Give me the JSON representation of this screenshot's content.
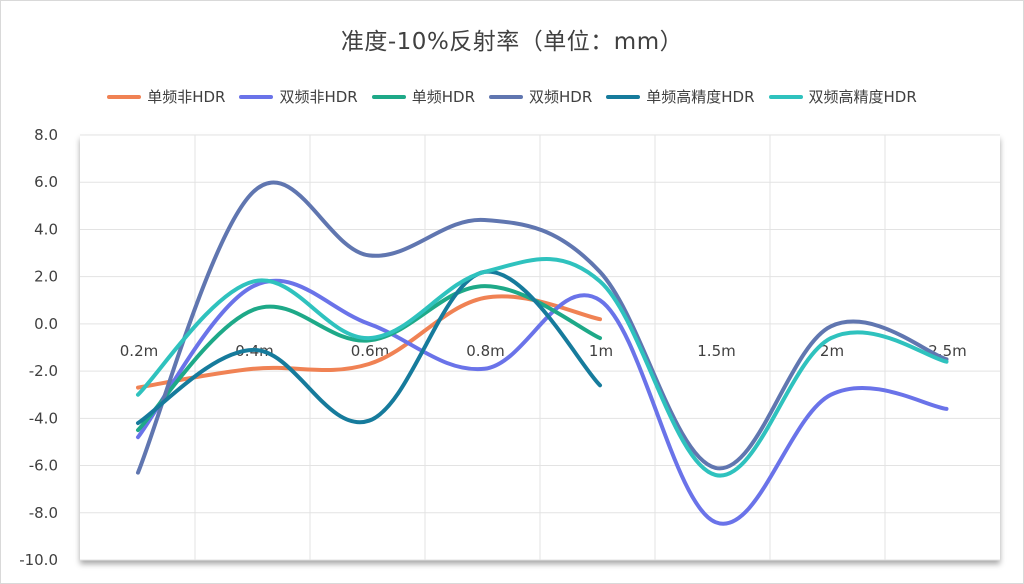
{
  "chart_data": {
    "type": "line",
    "title": "准度-10%反射率（单位：mm）",
    "categories": [
      "0.2m",
      "0.4m",
      "0.6m",
      "0.8m",
      "1m",
      "1.5m",
      "2m",
      "2.5m"
    ],
    "ylim": [
      -10,
      8
    ],
    "yticks": [
      "8.0",
      "6.0",
      "4.0",
      "2.0",
      "0.0",
      "-2.0",
      "-4.0",
      "-6.0",
      "-8.0",
      "-10.0"
    ],
    "smooth": true,
    "grid": true,
    "legend_position": "top",
    "series": [
      {
        "name": "单频非HDR",
        "color": "#F08254",
        "values": [
          -2.7,
          -1.9,
          -1.7,
          1.1,
          0.2,
          null,
          null,
          null
        ]
      },
      {
        "name": "双频非HDR",
        "color": "#6A73E9",
        "values": [
          -4.8,
          1.6,
          0.0,
          -1.9,
          1.0,
          -8.4,
          -3.0,
          -3.6
        ]
      },
      {
        "name": "单频HDR",
        "color": "#1EA988",
        "values": [
          -4.5,
          0.6,
          -0.7,
          1.6,
          -0.6,
          null,
          null,
          null
        ]
      },
      {
        "name": "双频HDR",
        "color": "#6076B0",
        "values": [
          -6.3,
          5.6,
          2.9,
          4.4,
          2.2,
          -6.1,
          -0.1,
          -1.5
        ]
      },
      {
        "name": "单频高精度HDR",
        "color": "#167B9C",
        "values": [
          -4.2,
          -1.1,
          -4.1,
          2.2,
          -2.6,
          null,
          null,
          null
        ]
      },
      {
        "name": "双频高精度HDR",
        "color": "#2FC2BE",
        "values": [
          -3.0,
          1.8,
          -0.6,
          2.2,
          1.8,
          -6.4,
          -0.6,
          -1.6
        ]
      }
    ]
  }
}
